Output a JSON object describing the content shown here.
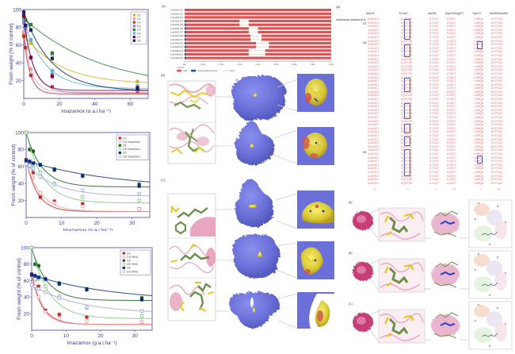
{
  "chart_data": [
    {
      "type": "scatter",
      "id": "dose-response-1",
      "title": "",
      "xlabel": "Imazamox (g a.i.ha⁻¹)",
      "ylabel": "Fresh weight (% of control)",
      "xlim": [
        0,
        70
      ],
      "ylim": [
        0,
        100
      ],
      "xticks": [
        0,
        20,
        40,
        60
      ],
      "yticks": [
        20,
        40,
        60,
        80,
        100
      ],
      "legend_position": "top-right",
      "x": [
        0,
        1,
        4,
        16,
        64
      ],
      "series": [
        {
          "name": "D1",
          "color": "#c8b820",
          "values": [
            72,
            70,
            62,
            50,
            19
          ],
          "fit_end": 16
        },
        {
          "name": "D2",
          "color": "#e8a0b0",
          "values": [
            75,
            73,
            33,
            24,
            10
          ],
          "fit_end": 7
        },
        {
          "name": "D3",
          "color": "#c03030",
          "values": [
            70,
            57,
            26,
            13,
            8
          ],
          "fit_end": 6
        },
        {
          "name": "D4",
          "color": "#9080c0",
          "values": [
            85,
            78,
            46,
            27,
            9
          ],
          "fit_end": 8
        },
        {
          "name": "D5",
          "color": "#2e7d32",
          "values": [
            90,
            88,
            83,
            51,
            12
          ],
          "fit_end": 10
        },
        {
          "name": "D6",
          "color": "#5ab0e0",
          "values": [
            88,
            80,
            66,
            31,
            14
          ],
          "fit_end": 14
        },
        {
          "name": "D7",
          "color": "#800040",
          "values": [
            93,
            82,
            46,
            25,
            12
          ],
          "fit_end": 10
        },
        {
          "name": "D8",
          "color": "#102060",
          "values": [
            97,
            82,
            77,
            45,
            11
          ],
          "fit_end": 9
        }
      ]
    },
    {
      "type": "scatter",
      "id": "dose-response-2",
      "title": "",
      "xlabel": "Imazamox (g a.i.ha⁻¹)",
      "ylabel": "Fresh weight (% of control)",
      "xlim": [
        0,
        35
      ],
      "ylim": [
        0,
        100
      ],
      "xticks": [
        0,
        10,
        20,
        30
      ],
      "yticks": [
        20,
        40,
        60,
        80,
        100
      ],
      "legend_position": "top-right",
      "x": [
        0,
        1,
        2,
        4,
        8,
        16,
        32
      ],
      "series": [
        {
          "name": "D3",
          "color": "#c62828",
          "filled": true,
          "values": [
            68,
            62,
            53,
            24,
            19,
            16,
            10
          ]
        },
        {
          "name": "D3+Malathion",
          "color": "#ef9a9a",
          "filled": false,
          "values": [
            66,
            60,
            47,
            29,
            17,
            13,
            10
          ]
        },
        {
          "name": "D5",
          "color": "#1b5e20",
          "filled": true,
          "values": [
            100,
            80,
            78,
            62,
            57,
            49,
            39
          ]
        },
        {
          "name": "D5+Malathion",
          "color": "#81c784",
          "filled": false,
          "values": [
            100,
            62,
            62,
            53,
            40,
            24,
            20
          ]
        },
        {
          "name": "D6",
          "color": "#0d2a80",
          "filled": true,
          "values": [
            67,
            66,
            64,
            62,
            56,
            49,
            37
          ]
        },
        {
          "name": "D6+Malathion",
          "color": "#9fa8da",
          "filled": false,
          "values": [
            63,
            61,
            58,
            48,
            39,
            32,
            28
          ]
        }
      ]
    },
    {
      "type": "scatter",
      "id": "dose-response-3",
      "title": "",
      "xlabel": "Imazamox (g a.i.ha⁻¹)",
      "ylabel": "Fresh weight (% of control)",
      "xlim": [
        0,
        35
      ],
      "ylim": [
        0,
        100
      ],
      "xticks": [
        0,
        10,
        20,
        30
      ],
      "yticks": [
        20,
        40,
        60,
        80,
        100
      ],
      "legend_position": "top-right",
      "x": [
        0,
        1,
        2,
        4,
        8,
        16,
        32
      ],
      "series": [
        {
          "name": "D3",
          "color": "#c62828",
          "filled": true,
          "values": [
            68,
            62,
            53,
            24,
            19,
            16,
            10
          ]
        },
        {
          "name": "D3+NBD",
          "color": "#ef9a9a",
          "filled": false,
          "values": [
            66,
            60,
            40,
            22,
            14,
            11,
            10
          ]
        },
        {
          "name": "D5",
          "color": "#1b5e20",
          "filled": true,
          "values": [
            100,
            80,
            78,
            62,
            57,
            50,
            39
          ]
        },
        {
          "name": "D5+NBD",
          "color": "#81c784",
          "filled": false,
          "values": [
            100,
            62,
            62,
            53,
            41,
            27,
            17
          ]
        },
        {
          "name": "D6",
          "color": "#0d2a80",
          "filled": true,
          "values": [
            67,
            66,
            64,
            62,
            56,
            49,
            37
          ]
        },
        {
          "name": "D6+NBD",
          "color": "#9fa8da",
          "filled": false,
          "values": [
            55,
            53,
            50,
            46,
            39,
            28,
            23
          ]
        }
      ]
    },
    {
      "type": "bar",
      "id": "gene-structure",
      "title": "",
      "panel_label": "(A)",
      "xlabel": "",
      "orientation": "horizontal",
      "categories": [
        "LcAHAS1-D1",
        "LcAHAS1-D2",
        "LcAHAS1-D3",
        "LcAHAS1-D4",
        "LcAHAS1-D5",
        "LcAHAS1-D6",
        "LcAHAS1-D7",
        "LcAHAS1-D8",
        "LcAHAS2-D1",
        "LcAHAS2-D2",
        "LcAHAS2-D3",
        "LcAHAS2-D4",
        "LcAHAS2-D5",
        "LcAHAS2-D6"
      ],
      "xticks": [
        "0kp",
        "0.5kp",
        "1.0kp",
        "1.5kp",
        "2.0kp",
        "2.5kp",
        "3.0kp",
        "3.5kp",
        "4.0kp"
      ],
      "xlim": [
        0,
        4.0
      ],
      "legend": [
        {
          "name": "CDS",
          "color": "#e05050"
        },
        {
          "name": "upstream/downstream",
          "color": "#1f4e9c"
        },
        {
          "name": "intron",
          "color": "#a0a060"
        }
      ],
      "series": [
        {
          "name": "gap_start_kb",
          "values": [
            null,
            null,
            null,
            1.5,
            1.5,
            1.75,
            1.75,
            1.8,
            1.8,
            1.95,
            1.95,
            1.75,
            1.75,
            null
          ]
        },
        {
          "name": "gap_end_kb",
          "values": [
            null,
            null,
            null,
            1.75,
            1.75,
            2.0,
            2.0,
            2.1,
            2.1,
            2.3,
            2.3,
            2.2,
            2.2,
            null
          ]
        },
        {
          "name": "upstream",
          "values": [
            false,
            false,
            false,
            true,
            true,
            true,
            true,
            true,
            true,
            true,
            true,
            true,
            true,
            true
          ]
        }
      ]
    }
  ],
  "figure": {
    "protein_panels": {
      "label_a": "(B)",
      "label_b": "(C)"
    },
    "alignment": {
      "label": "(A)",
      "reference": "Arabidopsis thaliana ALS",
      "group_labels": [
        "D3",
        "D6",
        "D8"
      ],
      "columns": [
        {
          "header": "Ala122",
          "residues": "GAAMEI"
        },
        {
          "header": "Pro197",
          "residues": "GQVPRR"
        },
        {
          "header": "Ala205",
          "residues": "GTDAF"
        },
        {
          "header": "Asp376/Arg377",
          "residues": "DGRVT"
        },
        {
          "header": "Trp574",
          "residues": "LWMQW"
        },
        {
          "header": "Ser653/Gly654",
          "residues": "NIPSGG"
        }
      ],
      "stars": [
        "*",
        "*",
        "*",
        "**",
        "*",
        "**"
      ]
    },
    "docking": {
      "labels": [
        "(A)",
        "(B)",
        "(C)"
      ]
    }
  }
}
